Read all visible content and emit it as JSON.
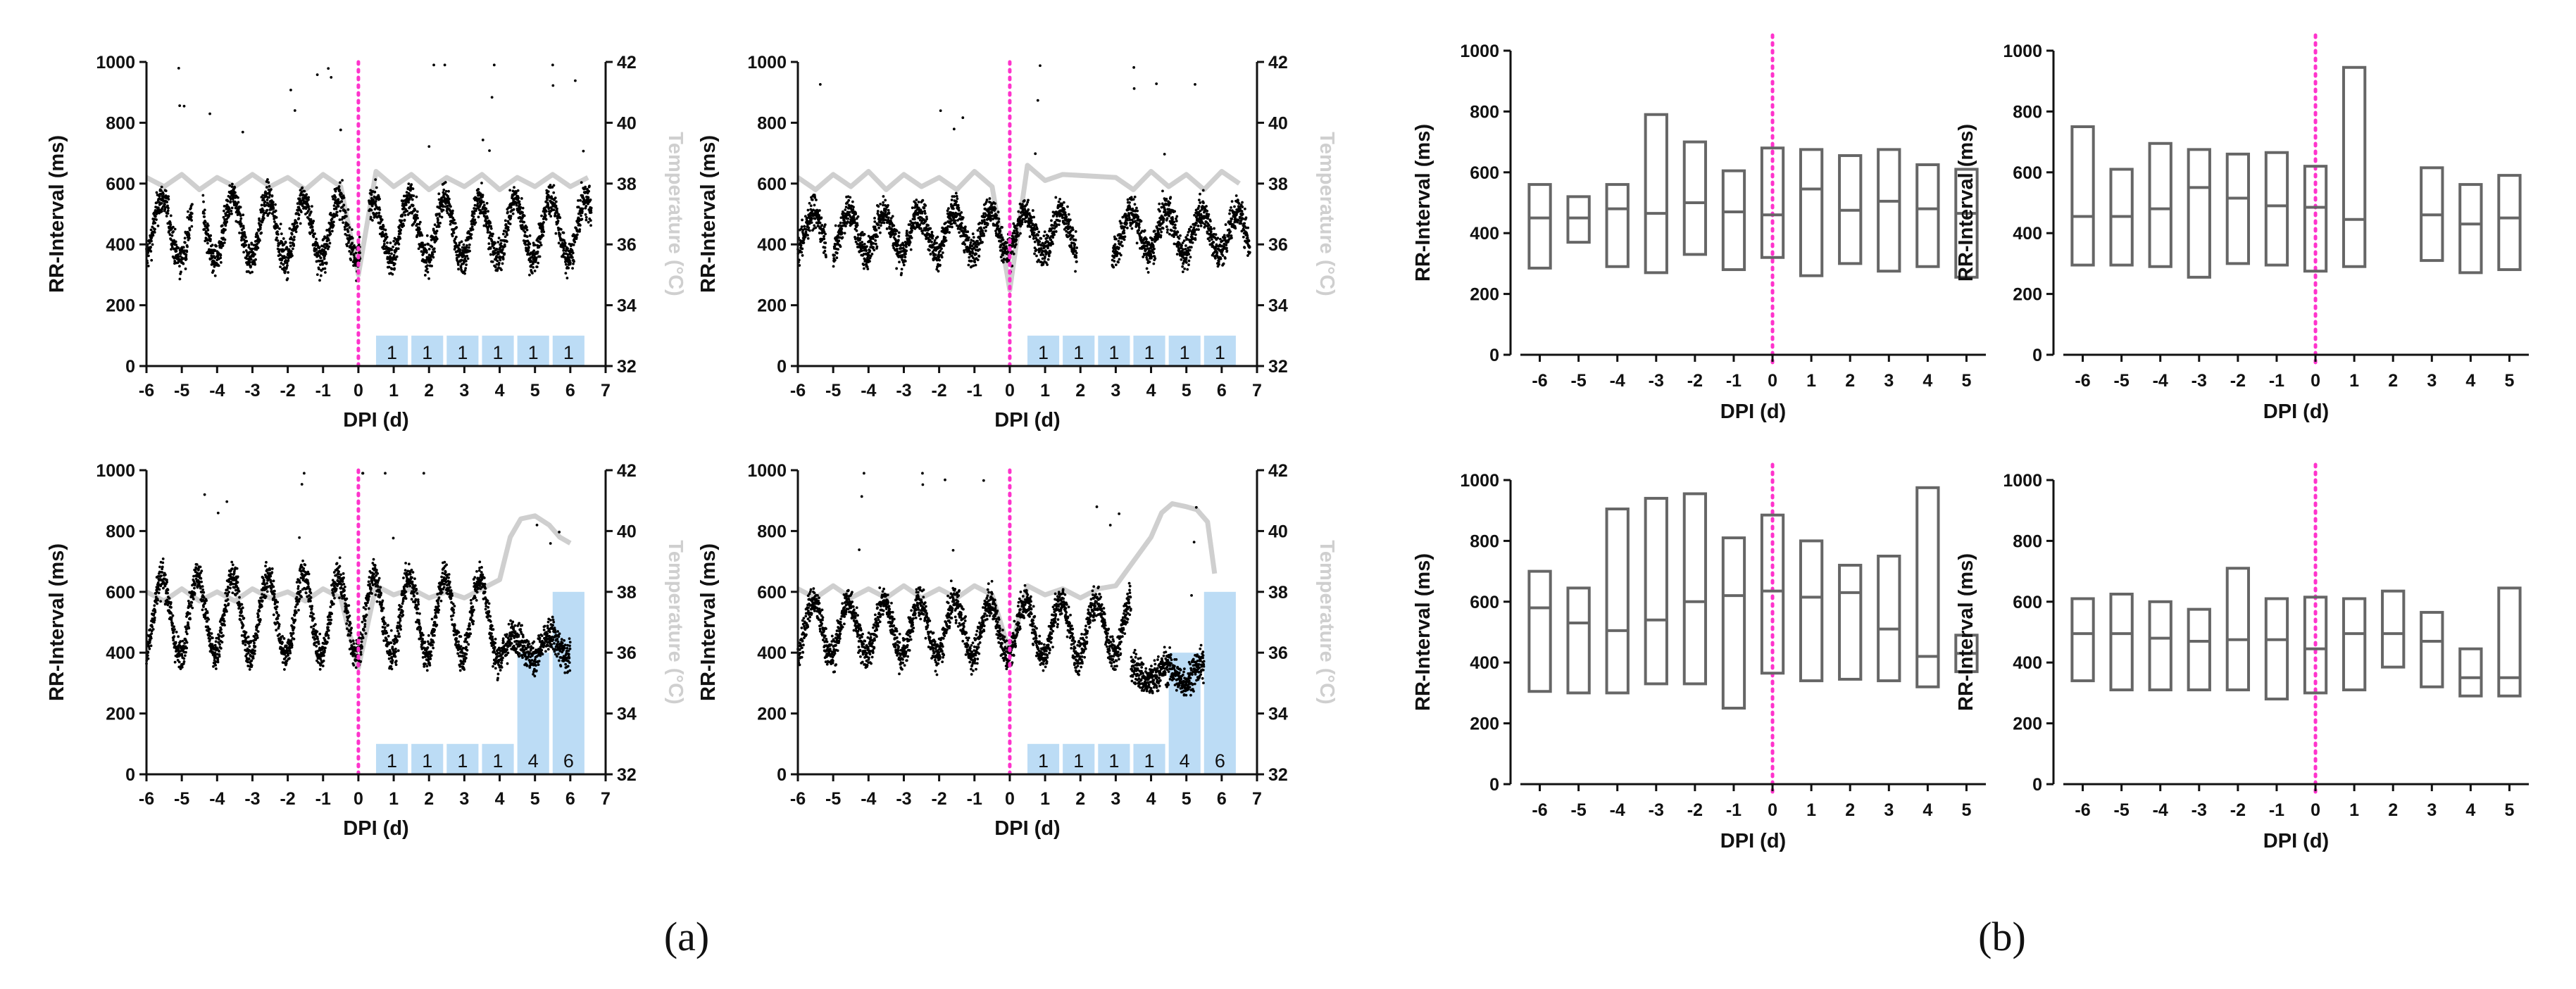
{
  "panel_labels": {
    "a": "(a)",
    "b": "(b)"
  },
  "colors": {
    "rr_points": "#000000",
    "temperature": "#cfcfcf",
    "temperature_label": "#cfcfcf",
    "infection_marker": "#ff33cc",
    "dose_bars": "#bcdcf5",
    "box_stroke": "#666666"
  },
  "chart_data": [
    {
      "id": "a1",
      "type": "scatter",
      "xlabel": "DPI (d)",
      "ylabel": "RR-Interval (ms)",
      "y2label": "Temperature (°C)",
      "xlim": [
        -6,
        7
      ],
      "ylim": [
        0,
        1000
      ],
      "y2lim": [
        32,
        42
      ],
      "xticks": [
        "-6",
        "-5",
        "-4",
        "-3",
        "-2",
        "-1",
        "0",
        "1",
        "2",
        "3",
        "4",
        "5",
        "6",
        "7"
      ],
      "yticks": [
        "0",
        "200",
        "400",
        "600",
        "800",
        "1000"
      ],
      "y2ticks": [
        "32",
        "34",
        "36",
        "38",
        "40",
        "42"
      ],
      "marker_x": 0,
      "rr_profile": {
        "x_start": -6,
        "x_end": 7,
        "gaps": [
          [
            -4.7,
            -4.4
          ],
          [
            0.05,
            0.3
          ],
          [
            6.6,
            7.0
          ]
        ],
        "level_ms": 450,
        "circadian_amp_ms": 100,
        "low_ms": 280,
        "high_ms": 700,
        "trend_end_ms": null
      },
      "temperature": {
        "x": [
          -6,
          -5.5,
          -5,
          -4.5,
          -4,
          -3.5,
          -3,
          -2.5,
          -2,
          -1.5,
          -1,
          -0.5,
          0,
          0.5,
          1,
          1.5,
          2,
          2.5,
          3,
          3.5,
          4,
          4.5,
          5,
          5.5,
          6,
          6.5
        ],
        "y": [
          38.2,
          37.9,
          38.3,
          37.8,
          38.2,
          37.9,
          38.3,
          37.9,
          38.2,
          37.8,
          38.3,
          37.9,
          35.0,
          38.4,
          37.9,
          38.3,
          37.8,
          38.2,
          37.9,
          38.3,
          37.8,
          38.2,
          37.9,
          38.3,
          37.9,
          38.2
        ]
      },
      "dose_bars": [
        {
          "x": 0.5,
          "x2": 1.4,
          "label": "1",
          "value": 1
        },
        {
          "x": 1.5,
          "x2": 2.4,
          "label": "1",
          "value": 1
        },
        {
          "x": 2.5,
          "x2": 3.4,
          "label": "1",
          "value": 1
        },
        {
          "x": 3.5,
          "x2": 4.4,
          "label": "1",
          "value": 1
        },
        {
          "x": 4.5,
          "x2": 5.4,
          "label": "1",
          "value": 1
        },
        {
          "x": 5.5,
          "x2": 6.4,
          "label": "1",
          "value": 1
        }
      ]
    },
    {
      "id": "a2",
      "type": "scatter",
      "xlabel": "DPI (d)",
      "ylabel": "RR-Interval (ms)",
      "y2label": "Temperature (°C)",
      "xlim": [
        -6,
        7
      ],
      "ylim": [
        0,
        1000
      ],
      "y2lim": [
        32,
        42
      ],
      "xticks": [
        "-6",
        "-5",
        "-4",
        "-3",
        "-2",
        "-1",
        "0",
        "1",
        "2",
        "3",
        "4",
        "5",
        "6",
        "7"
      ],
      "yticks": [
        "0",
        "200",
        "400",
        "600",
        "800",
        "1000"
      ],
      "y2ticks": [
        "32",
        "34",
        "36",
        "38",
        "40",
        "42"
      ],
      "marker_x": 0,
      "rr_profile": {
        "x_start": -6,
        "x_end": 7,
        "gaps": [
          [
            -5.2,
            -5.0
          ],
          [
            1.9,
            2.9
          ],
          [
            6.8,
            7.0
          ]
        ],
        "level_ms": 440,
        "circadian_amp_ms": 70,
        "low_ms": 300,
        "high_ms": 600,
        "trend_end_ms": null
      },
      "temperature": {
        "x": [
          -6,
          -5.5,
          -5,
          -4.5,
          -4,
          -3.5,
          -3,
          -2.5,
          -2,
          -1.5,
          -1,
          -0.5,
          0,
          0.5,
          1,
          1.5,
          3,
          3.5,
          4,
          4.5,
          5,
          5.5,
          6,
          6.5
        ],
        "y": [
          38.2,
          37.8,
          38.3,
          37.9,
          38.4,
          37.8,
          38.3,
          37.9,
          38.2,
          37.8,
          38.4,
          37.9,
          34.5,
          38.6,
          38.1,
          38.3,
          38.2,
          37.8,
          38.4,
          37.9,
          38.3,
          37.8,
          38.4,
          38.0
        ]
      },
      "dose_bars": [
        {
          "x": 0.5,
          "x2": 1.4,
          "label": "1",
          "value": 1
        },
        {
          "x": 1.5,
          "x2": 2.4,
          "label": "1",
          "value": 1
        },
        {
          "x": 2.5,
          "x2": 3.4,
          "label": "1",
          "value": 1
        },
        {
          "x": 3.5,
          "x2": 4.4,
          "label": "1",
          "value": 1
        },
        {
          "x": 4.5,
          "x2": 5.4,
          "label": "1",
          "value": 1
        },
        {
          "x": 5.5,
          "x2": 6.4,
          "label": "1",
          "value": 1
        }
      ]
    },
    {
      "id": "a3",
      "type": "scatter",
      "xlabel": "DPI (d)",
      "ylabel": "RR-Interval (ms)",
      "y2label": "Temperature (°C)",
      "xlim": [
        -6,
        7
      ],
      "ylim": [
        0,
        1000
      ],
      "y2lim": [
        32,
        42
      ],
      "xticks": [
        "-6",
        "-5",
        "-4",
        "-3",
        "-2",
        "-1",
        "0",
        "1",
        "2",
        "3",
        "4",
        "5",
        "6",
        "7"
      ],
      "yticks": [
        "0",
        "200",
        "400",
        "600",
        "800",
        "1000"
      ],
      "y2ticks": [
        "32",
        "34",
        "36",
        "38",
        "40",
        "42"
      ],
      "marker_x": 0,
      "rr_profile": {
        "x_start": -6,
        "x_end": 6.0,
        "gaps": [],
        "level_ms": 520,
        "circadian_amp_ms": 130,
        "low_ms": 300,
        "high_ms": 800,
        "trend_end_ms": 420
      },
      "temperature": {
        "x": [
          -6,
          -5.5,
          -5,
          -4.5,
          -4,
          -3.5,
          -3,
          -2.5,
          -2,
          -1.5,
          -1,
          -0.5,
          0,
          0.5,
          1,
          1.5,
          2,
          2.5,
          3,
          3.5,
          4,
          4.3,
          4.6,
          5,
          5.4,
          5.7,
          6
        ],
        "y": [
          38.0,
          37.7,
          38.1,
          37.7,
          38.0,
          37.7,
          38.1,
          37.8,
          38.0,
          37.7,
          38.1,
          37.8,
          35.5,
          38.2,
          37.9,
          38.1,
          37.8,
          38.0,
          37.8,
          38.1,
          38.4,
          39.8,
          40.4,
          40.5,
          40.2,
          39.8,
          39.6
        ]
      },
      "dose_bars": [
        {
          "x": 0.5,
          "x2": 1.4,
          "label": "1",
          "value": 1
        },
        {
          "x": 1.5,
          "x2": 2.4,
          "label": "1",
          "value": 1
        },
        {
          "x": 2.5,
          "x2": 3.4,
          "label": "1",
          "value": 1
        },
        {
          "x": 3.5,
          "x2": 4.4,
          "label": "1",
          "value": 1
        },
        {
          "x": 4.5,
          "x2": 5.4,
          "label": "4",
          "value": 4
        },
        {
          "x": 5.5,
          "x2": 6.4,
          "label": "6",
          "value": 6
        }
      ]
    },
    {
      "id": "a4",
      "type": "scatter",
      "xlabel": "DPI (d)",
      "ylabel": "RR-Interval (ms)",
      "y2label": "Temperature (°C)",
      "xlim": [
        -6,
        7
      ],
      "ylim": [
        0,
        1000
      ],
      "y2lim": [
        32,
        42
      ],
      "xticks": [
        "-6",
        "-5",
        "-4",
        "-3",
        "-2",
        "-1",
        "0",
        "1",
        "2",
        "3",
        "4",
        "5",
        "6",
        "7"
      ],
      "yticks": [
        "0",
        "200",
        "400",
        "600",
        "800",
        "1000"
      ],
      "y2ticks": [
        "32",
        "34",
        "36",
        "38",
        "40",
        "42"
      ],
      "marker_x": 0,
      "rr_profile": {
        "x_start": -6,
        "x_end": 5.5,
        "gaps": [],
        "level_ms": 480,
        "circadian_amp_ms": 90,
        "low_ms": 300,
        "high_ms": 650,
        "trend_end_ms": 330
      },
      "temperature": {
        "x": [
          -6,
          -5.5,
          -5,
          -4.5,
          -4,
          -3.5,
          -3,
          -2.5,
          -2,
          -1.5,
          -1,
          -0.5,
          0,
          0.5,
          1,
          1.5,
          2,
          2.5,
          3,
          3.5,
          4,
          4.3,
          4.6,
          5,
          5.3,
          5.6,
          5.8
        ],
        "y": [
          38.1,
          37.8,
          38.2,
          37.8,
          38.1,
          37.8,
          38.2,
          37.8,
          38.1,
          37.8,
          38.2,
          37.9,
          36.0,
          38.2,
          37.9,
          38.1,
          37.8,
          38.1,
          38.2,
          39.0,
          39.8,
          40.6,
          40.9,
          40.8,
          40.7,
          40.3,
          38.6
        ]
      },
      "dose_bars": [
        {
          "x": 0.5,
          "x2": 1.4,
          "label": "1",
          "value": 1
        },
        {
          "x": 1.5,
          "x2": 2.4,
          "label": "1",
          "value": 1
        },
        {
          "x": 2.5,
          "x2": 3.4,
          "label": "1",
          "value": 1
        },
        {
          "x": 3.5,
          "x2": 4.4,
          "label": "1",
          "value": 1
        },
        {
          "x": 4.5,
          "x2": 5.4,
          "label": "4",
          "value": 4
        },
        {
          "x": 5.5,
          "x2": 6.4,
          "label": "6",
          "value": 6
        }
      ]
    },
    {
      "id": "b1",
      "type": "box",
      "xlabel": "DPI (d)",
      "ylabel": "RR-Interval (ms)",
      "ylim": [
        0,
        1000
      ],
      "yticks": [
        "0",
        "200",
        "400",
        "600",
        "800",
        "1000"
      ],
      "categories": [
        "-6",
        "-5",
        "-4",
        "-3",
        "-2",
        "-1",
        "0",
        "1",
        "2",
        "3",
        "4",
        "5"
      ],
      "marker_category": "0",
      "boxes": [
        {
          "min": 285,
          "median": 450,
          "max": 560
        },
        {
          "min": 370,
          "median": 450,
          "max": 520
        },
        {
          "min": 290,
          "median": 480,
          "max": 560
        },
        {
          "min": 270,
          "median": 465,
          "max": 790
        },
        {
          "min": 330,
          "median": 500,
          "max": 700
        },
        {
          "min": 280,
          "median": 470,
          "max": 605
        },
        {
          "min": 320,
          "median": 460,
          "max": 680
        },
        {
          "min": 260,
          "median": 545,
          "max": 675
        },
        {
          "min": 300,
          "median": 475,
          "max": 655
        },
        {
          "min": 275,
          "median": 505,
          "max": 675
        },
        {
          "min": 290,
          "median": 480,
          "max": 625
        },
        {
          "min": 255,
          "median": 465,
          "max": 610
        }
      ]
    },
    {
      "id": "b2",
      "type": "box",
      "xlabel": "DPI (d)",
      "ylabel": "RR-Interval (ms)",
      "ylim": [
        0,
        1000
      ],
      "yticks": [
        "0",
        "200",
        "400",
        "600",
        "800",
        "1000"
      ],
      "categories": [
        "-6",
        "-5",
        "-4",
        "-3",
        "-2",
        "-1",
        "0",
        "1",
        "2",
        "3",
        "4",
        "5"
      ],
      "marker_category": "0",
      "boxes": [
        {
          "min": 295,
          "median": 455,
          "max": 750
        },
        {
          "min": 295,
          "median": 455,
          "max": 610
        },
        {
          "min": 290,
          "median": 480,
          "max": 695
        },
        {
          "min": 255,
          "median": 550,
          "max": 675
        },
        {
          "min": 300,
          "median": 515,
          "max": 660
        },
        {
          "min": 295,
          "median": 490,
          "max": 665
        },
        {
          "min": 275,
          "median": 485,
          "max": 620
        },
        {
          "min": 290,
          "median": 445,
          "max": 945
        },
        null,
        {
          "min": 310,
          "median": 460,
          "max": 615
        },
        {
          "min": 270,
          "median": 430,
          "max": 560
        },
        {
          "min": 280,
          "median": 450,
          "max": 590
        }
      ]
    },
    {
      "id": "b3",
      "type": "box",
      "xlabel": "DPI (d)",
      "ylabel": "RR-Interval (ms)",
      "ylim": [
        0,
        1000
      ],
      "yticks": [
        "0",
        "200",
        "400",
        "600",
        "800",
        "1000"
      ],
      "categories": [
        "-6",
        "-5",
        "-4",
        "-3",
        "-2",
        "-1",
        "0",
        "1",
        "2",
        "3",
        "4",
        "5"
      ],
      "marker_category": "0",
      "boxes": [
        {
          "min": 305,
          "median": 580,
          "max": 700
        },
        {
          "min": 300,
          "median": 530,
          "max": 645
        },
        {
          "min": 300,
          "median": 505,
          "max": 905
        },
        {
          "min": 330,
          "median": 540,
          "max": 940
        },
        {
          "min": 330,
          "median": 600,
          "max": 955
        },
        {
          "min": 250,
          "median": 620,
          "max": 810
        },
        {
          "min": 365,
          "median": 635,
          "max": 885
        },
        {
          "min": 340,
          "median": 615,
          "max": 800
        },
        {
          "min": 345,
          "median": 630,
          "max": 720
        },
        {
          "min": 340,
          "median": 510,
          "max": 750
        },
        {
          "min": 320,
          "median": 420,
          "max": 975
        },
        {
          "min": 370,
          "median": 430,
          "max": 490
        }
      ]
    },
    {
      "id": "b4",
      "type": "box",
      "xlabel": "DPI (d)",
      "ylabel": "RR-Interval (ms)",
      "ylim": [
        0,
        1000
      ],
      "yticks": [
        "0",
        "200",
        "400",
        "600",
        "800",
        "1000"
      ],
      "categories": [
        "-6",
        "-5",
        "-4",
        "-3",
        "-2",
        "-1",
        "0",
        "1",
        "2",
        "3",
        "4",
        "5"
      ],
      "marker_category": "0",
      "boxes": [
        {
          "min": 340,
          "median": 495,
          "max": 610
        },
        {
          "min": 310,
          "median": 495,
          "max": 625
        },
        {
          "min": 310,
          "median": 480,
          "max": 600
        },
        {
          "min": 310,
          "median": 470,
          "max": 575
        },
        {
          "min": 310,
          "median": 475,
          "max": 710
        },
        {
          "min": 280,
          "median": 475,
          "max": 610
        },
        {
          "min": 300,
          "median": 445,
          "max": 615
        },
        {
          "min": 310,
          "median": 495,
          "max": 610
        },
        {
          "min": 385,
          "median": 495,
          "max": 635
        },
        {
          "min": 320,
          "median": 470,
          "max": 565
        },
        {
          "min": 290,
          "median": 350,
          "max": 445
        },
        {
          "min": 290,
          "median": 350,
          "max": 645
        }
      ]
    }
  ]
}
